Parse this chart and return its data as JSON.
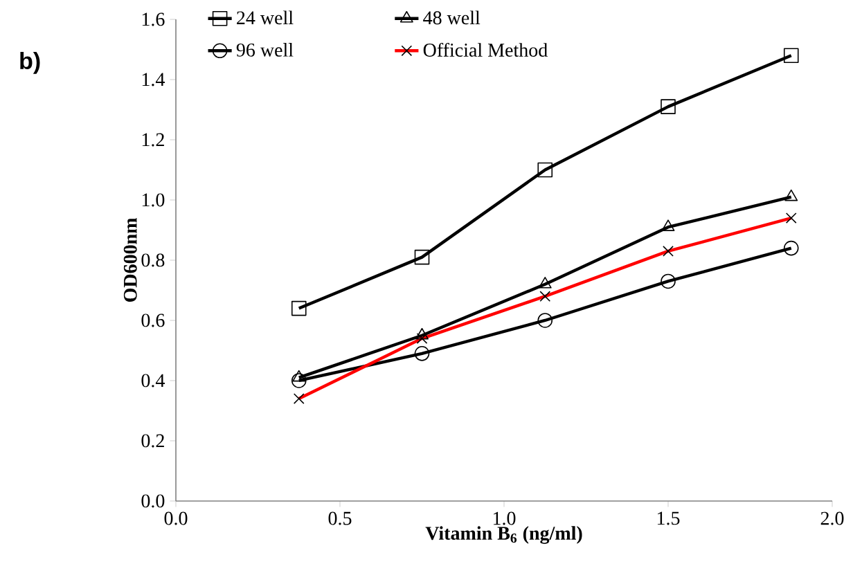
{
  "chart_data": {
    "type": "line",
    "xlabel": "Vitamin B$_{6}$ (ng/ml)",
    "ylabel": "OD600nm",
    "annotations": [
      "b)"
    ],
    "x": [
      0.375,
      0.75,
      1.125,
      1.5,
      1.875
    ],
    "series": [
      {
        "name": "24 well",
        "color": "#000000",
        "marker": "square",
        "values": [
          0.64,
          0.81,
          1.1,
          1.31,
          1.48
        ]
      },
      {
        "name": "48 well",
        "color": "#000000",
        "marker": "triangle",
        "values": [
          0.41,
          0.55,
          0.72,
          0.91,
          1.01
        ]
      },
      {
        "name": "96 well",
        "color": "#000000",
        "marker": "circle",
        "values": [
          0.4,
          0.49,
          0.6,
          0.73,
          0.84
        ]
      },
      {
        "name": "Official Method",
        "color": "#ff0000",
        "marker": "cross",
        "values": [
          0.34,
          0.54,
          0.68,
          0.83,
          0.94
        ]
      }
    ],
    "xlim": [
      0,
      2
    ],
    "ylim": [
      0,
      1.6
    ],
    "xticks": [
      {
        "value": 0,
        "label": "0.0"
      },
      0.5,
      {
        "value": 1,
        "label": "1.0"
      },
      1.5,
      {
        "value": 2,
        "label": "2.0"
      }
    ],
    "yticks": [
      {
        "value": 0,
        "label": "0.0"
      },
      0.2,
      0.4,
      0.6,
      0.8,
      {
        "value": 1,
        "label": "1.0"
      },
      1.2,
      1.4,
      1.6
    ],
    "legend": "top",
    "grid": false
  }
}
